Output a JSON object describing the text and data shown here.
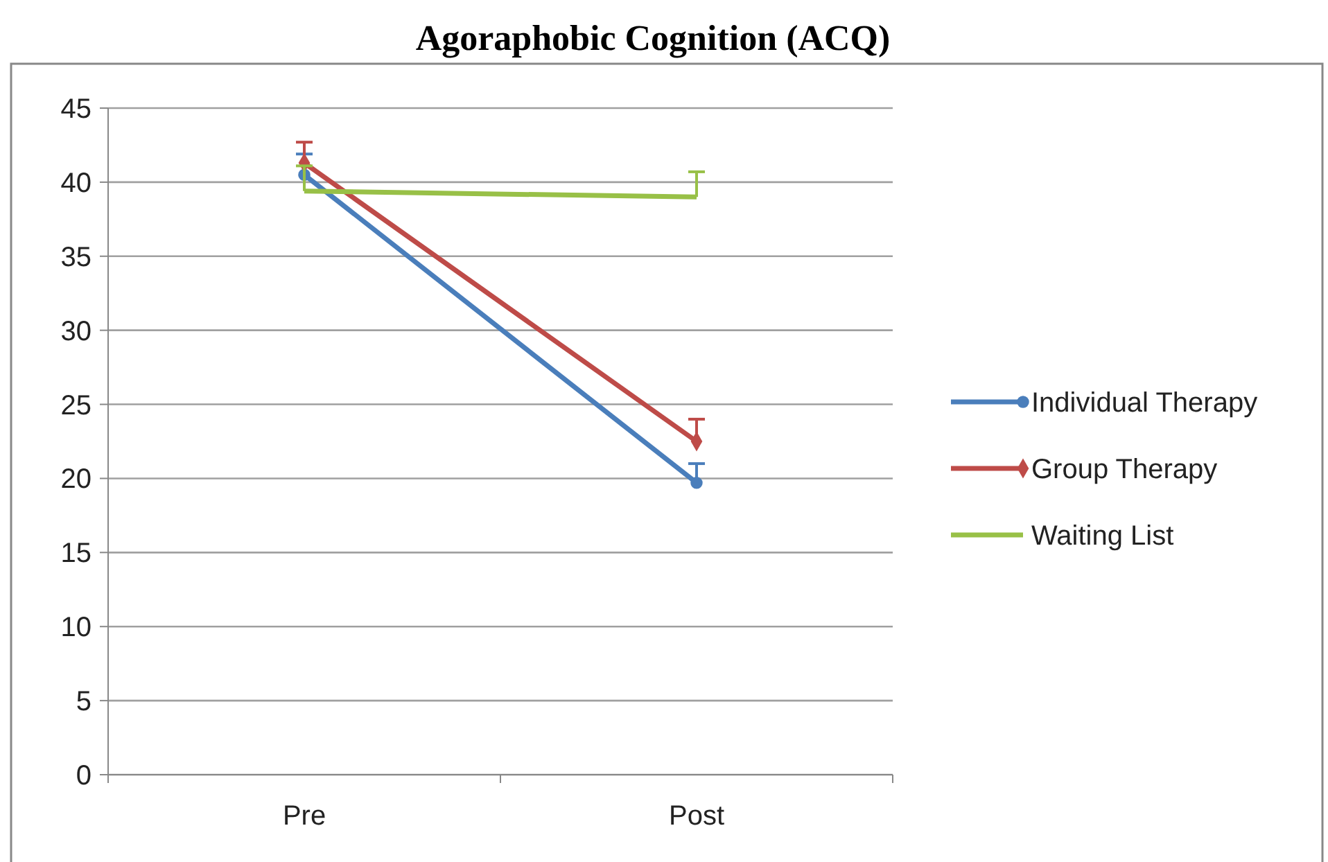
{
  "chart_data": {
    "type": "line",
    "title": "Agoraphobic Cognition (ACQ)",
    "categories": [
      "Pre",
      "Post"
    ],
    "series": [
      {
        "name": "Individual Therapy",
        "color": "#4a7ebb",
        "values": [
          40.5,
          19.7
        ],
        "errors": [
          [
            40.5,
            41.9
          ],
          [
            19.7,
            21.0
          ]
        ],
        "marker": "circle"
      },
      {
        "name": "Group Therapy",
        "color": "#be4b48",
        "values": [
          41.3,
          22.5
        ],
        "errors": [
          [
            41.3,
            42.7
          ],
          [
            22.5,
            24.0
          ]
        ],
        "marker": "diamond"
      },
      {
        "name": "Waiting List",
        "color": "#98c047",
        "values": [
          39.4,
          39.0
        ],
        "errors": [
          [
            39.4,
            41.1
          ],
          [
            39.0,
            40.7
          ]
        ],
        "marker": "none"
      }
    ],
    "ylim": [
      0,
      45
    ],
    "yticks": [
      0,
      5,
      10,
      15,
      20,
      25,
      30,
      35,
      40,
      45
    ],
    "grid": "y",
    "legend": "right"
  }
}
